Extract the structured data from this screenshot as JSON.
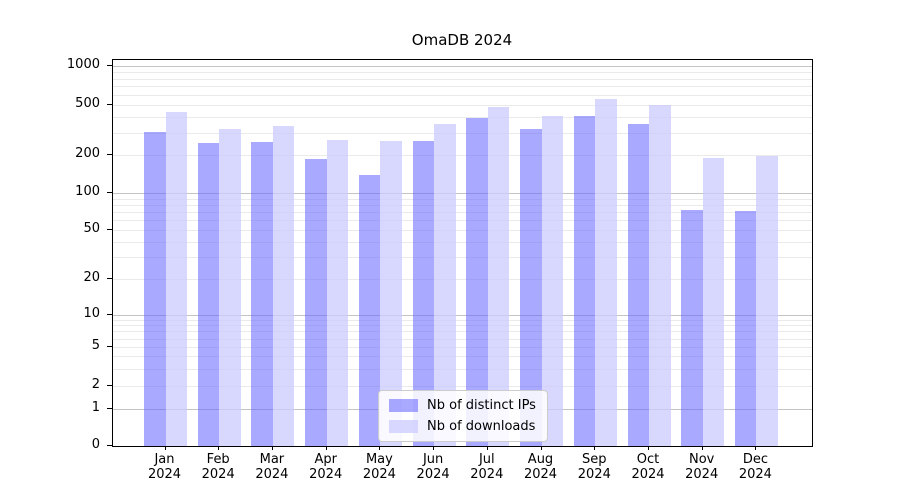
{
  "chart_data": {
    "type": "bar",
    "title": "OmaDB 2024",
    "categories": [
      "Jan 2024",
      "Feb 2024",
      "Mar 2024",
      "Apr 2024",
      "May 2024",
      "Jun 2024",
      "Jul 2024",
      "Aug 2024",
      "Sep 2024",
      "Oct 2024",
      "Nov 2024",
      "Dec 2024"
    ],
    "series": [
      {
        "name": "Nb of distinct IPs",
        "color": "rgba(102,102,255,0.56)",
        "values": [
          305,
          248,
          256,
          186,
          139,
          259,
          395,
          325,
          411,
          354,
          72,
          71
        ]
      },
      {
        "name": "Nb of downloads",
        "color": "rgba(204,204,255,0.76)",
        "values": [
          440,
          322,
          340,
          266,
          259,
          351,
          481,
          408,
          556,
          506,
          188,
          197
        ]
      }
    ],
    "xlabel": "",
    "ylabel": "",
    "yscale": "symlog",
    "ylim": [
      0,
      1120
    ],
    "yticks": [
      0,
      1,
      2,
      5,
      10,
      20,
      50,
      100,
      200,
      500,
      1000
    ],
    "ytick_labels": [
      "0",
      "1",
      "2",
      "5",
      "10",
      "20",
      "50",
      "100",
      "200",
      "500",
      "1000"
    ],
    "grid": "both",
    "legend_position": "lower center",
    "colors": {
      "grid_major": "#c4c4c4",
      "grid_minor": "#eaeaea",
      "spine": "#000000",
      "text": "#000000"
    }
  }
}
